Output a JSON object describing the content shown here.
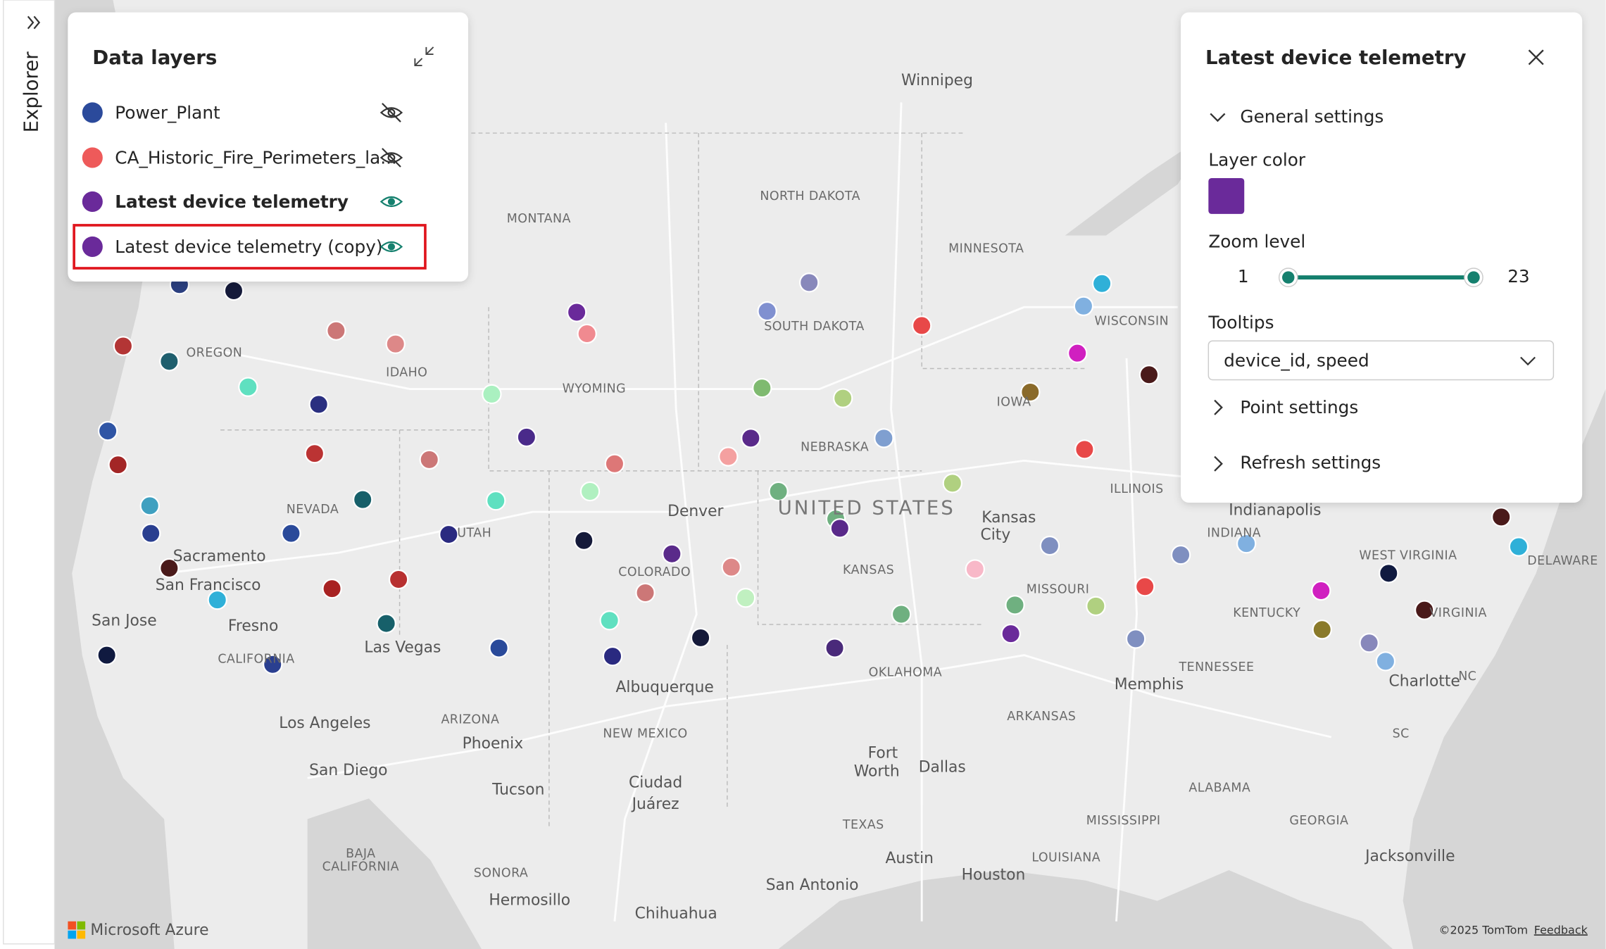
{
  "sidebar": {
    "label": "Explorer"
  },
  "data_layers": {
    "title": "Data layers",
    "layers": [
      {
        "name": "Power_Plant",
        "color": "#2b4a9b",
        "visible": false,
        "selected": false
      },
      {
        "name": "CA_Historic_Fire_Perimeters_la...",
        "color": "#ee5a5a",
        "visible": false,
        "selected": false
      },
      {
        "name": "Latest device telemetry",
        "color": "#6a2a9a",
        "visible": true,
        "selected": true
      },
      {
        "name": "Latest device telemetry (copy)",
        "color": "#6a2a9a",
        "visible": true,
        "selected": false
      }
    ]
  },
  "settings_panel": {
    "title": "Latest device telemetry",
    "general_settings": "General settings",
    "layer_color_label": "Layer color",
    "layer_color": "#6a2a9a",
    "zoom_label": "Zoom level",
    "zoom_min": 1,
    "zoom_max": 23,
    "tooltips_label": "Tooltips",
    "tooltips_value": "device_id, speed",
    "point_settings": "Point settings",
    "refresh_settings": "Refresh settings"
  },
  "map": {
    "labels": [
      "Winnipeg",
      "NORTH DAKOTA",
      "MONTANA",
      "MINNESOTA",
      "SOUTH DAKOTA",
      "WISCONSIN",
      "OREGON",
      "IDAHO",
      "WYOMING",
      "IOWA",
      "NEBRASKA",
      "ILLINOIS",
      "Indianapolis",
      "NEVADA",
      "Denver",
      "UNITED STATES",
      "Kansas",
      "City",
      "UTAH",
      "INDIANA",
      "Sacramento",
      "WEST VIRGINIA",
      "DELAWARE",
      "KANSAS",
      "COLORADO",
      "San Francisco",
      "MISSOURI",
      "San Jose",
      "Fresno",
      "KENTUCKY",
      "VIRGINIA",
      "Las Vegas",
      "CALIFORNIA",
      "TENNESSEE",
      "OKLAHOMA",
      "Charlotte",
      "NC",
      "Memphis",
      "Albuquerque",
      "ARKANSAS",
      "ARIZONA",
      "Los Angeles",
      "NEW MEXICO",
      "SC",
      "Phoenix",
      "Fort",
      "Worth",
      "Dallas",
      "San Diego",
      "ALABAMA",
      "Tucson",
      "Ciudad",
      "Juárez",
      "TEXAS",
      "MISSISSIPPI",
      "GEORGIA",
      "BAJA",
      "CALIFORNIA",
      "LOUISIANA",
      "Austin",
      "Jacksonville",
      "SONORA",
      "Houston",
      "San Antonio",
      "Hermosillo",
      "Chihuahua"
    ],
    "brand": "Microsoft Azure",
    "attribution": "©2025 TomTom",
    "feedback": "Feedback"
  }
}
